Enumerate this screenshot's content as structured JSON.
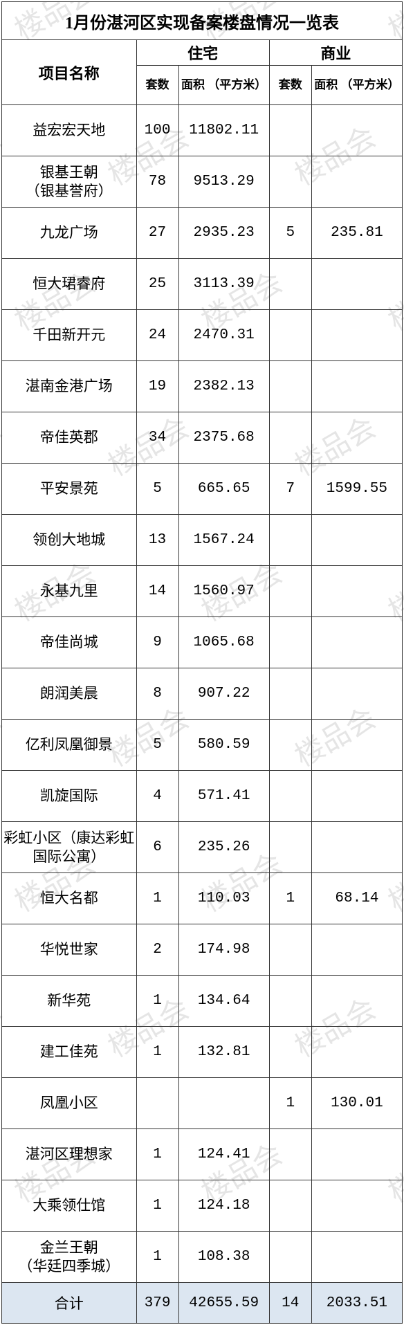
{
  "title": "1月份湛河区实现备案楼盘情况一览表",
  "headers": {
    "project_name": "项目名称",
    "residential": "住宅",
    "commercial": "商业",
    "count": "套数",
    "area": "面积\n（平方米）"
  },
  "rows": [
    {
      "name": "益宏宏天地",
      "r_count": "100",
      "r_area": "11802.11",
      "c_count": "",
      "c_area": ""
    },
    {
      "name": "银基王朝\n（银基誉府）",
      "r_count": "78",
      "r_area": "9513.29",
      "c_count": "",
      "c_area": ""
    },
    {
      "name": "九龙广场",
      "r_count": "27",
      "r_area": "2935.23",
      "c_count": "5",
      "c_area": "235.81"
    },
    {
      "name": "恒大珺睿府",
      "r_count": "25",
      "r_area": "3113.39",
      "c_count": "",
      "c_area": ""
    },
    {
      "name": "千田新开元",
      "r_count": "24",
      "r_area": "2470.31",
      "c_count": "",
      "c_area": ""
    },
    {
      "name": "湛南金港广场",
      "r_count": "19",
      "r_area": "2382.13",
      "c_count": "",
      "c_area": ""
    },
    {
      "name": "帝佳英郡",
      "r_count": "34",
      "r_area": "2375.68",
      "c_count": "",
      "c_area": ""
    },
    {
      "name": "平安景苑",
      "r_count": "5",
      "r_area": "665.65",
      "c_count": "7",
      "c_area": "1599.55"
    },
    {
      "name": "领创大地城",
      "r_count": "13",
      "r_area": "1567.24",
      "c_count": "",
      "c_area": ""
    },
    {
      "name": "永基九里",
      "r_count": "14",
      "r_area": "1560.97",
      "c_count": "",
      "c_area": ""
    },
    {
      "name": "帝佳尚城",
      "r_count": "9",
      "r_area": "1065.68",
      "c_count": "",
      "c_area": ""
    },
    {
      "name": "朗润美晨",
      "r_count": "8",
      "r_area": "907.22",
      "c_count": "",
      "c_area": ""
    },
    {
      "name": "亿利凤凰御景",
      "r_count": "5",
      "r_area": "580.59",
      "c_count": "",
      "c_area": ""
    },
    {
      "name": "凯旋国际",
      "r_count": "4",
      "r_area": "571.41",
      "c_count": "",
      "c_area": ""
    },
    {
      "name": "彩虹小区（康达彩虹国际公寓）",
      "r_count": "6",
      "r_area": "235.26",
      "c_count": "",
      "c_area": ""
    },
    {
      "name": "恒大名都",
      "r_count": "1",
      "r_area": "110.03",
      "c_count": "1",
      "c_area": "68.14"
    },
    {
      "name": "华悦世家",
      "r_count": "2",
      "r_area": "174.98",
      "c_count": "",
      "c_area": ""
    },
    {
      "name": "新华苑",
      "r_count": "1",
      "r_area": "134.64",
      "c_count": "",
      "c_area": ""
    },
    {
      "name": "建工佳苑",
      "r_count": "1",
      "r_area": "132.81",
      "c_count": "",
      "c_area": ""
    },
    {
      "name": "凤凰小区",
      "r_count": "",
      "r_area": "",
      "c_count": "1",
      "c_area": "130.01"
    },
    {
      "name": "湛河区理想家",
      "r_count": "1",
      "r_area": "124.41",
      "c_count": "",
      "c_area": ""
    },
    {
      "name": "大乘领仕馆",
      "r_count": "1",
      "r_area": "124.18",
      "c_count": "",
      "c_area": ""
    },
    {
      "name": "金兰王朝\n（华廷四季城）",
      "r_count": "1",
      "r_area": "108.38",
      "c_count": "",
      "c_area": ""
    }
  ],
  "total": {
    "label": "合计",
    "r_count": "379",
    "r_area": "42655.59",
    "c_count": "14",
    "c_area": "2033.51"
  },
  "watermark": {
    "text": "楼品会",
    "color": "rgba(0,0,0,0.10)",
    "fontsize": 42,
    "angle_deg": -30
  },
  "style": {
    "border_color": "#333333",
    "title_fontsize": 24,
    "header_fontsize": 20,
    "body_fontsize": 21,
    "total_bg": "#dce6f1",
    "font_family": "SimSun"
  }
}
